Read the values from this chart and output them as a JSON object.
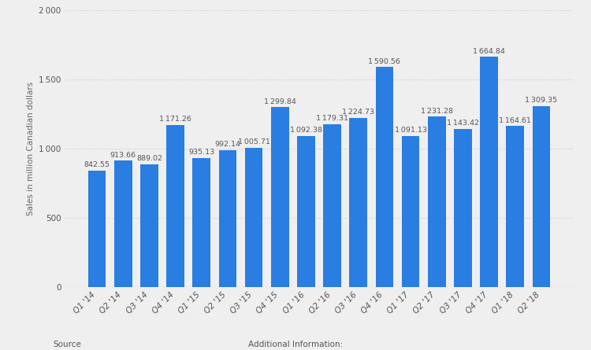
{
  "categories": [
    "Q1 '14",
    "Q2 '14",
    "Q3 '14",
    "Q4 '14",
    "Q1 '15",
    "Q2 '15",
    "Q3 '15",
    "Q4 '15",
    "Q1 '16",
    "Q2 '16",
    "Q3 '16",
    "Q4 '16",
    "Q1 '17",
    "Q2 '17",
    "Q3 '17",
    "Q4 '17",
    "Q1 '18",
    "Q2 '18"
  ],
  "values": [
    842.55,
    913.66,
    889.02,
    1171.26,
    935.13,
    992.14,
    1005.71,
    1299.84,
    1092.38,
    1179.31,
    1224.73,
    1590.56,
    1091.13,
    1231.28,
    1143.42,
    1664.84,
    1164.61,
    1309.35
  ],
  "bar_color": "#2a7de1",
  "background_color": "#efefef",
  "plot_bg_color": "#efefef",
  "ylabel": "Sales in million Canadian dollars",
  "ylim": [
    0,
    2000
  ],
  "yticks": [
    0,
    500,
    1000,
    1500,
    2000
  ],
  "value_fontsize": 6.8,
  "tick_fontsize": 7.5,
  "ylabel_fontsize": 7.5,
  "footer_left": "Source",
  "footer_right": "Additional Information:"
}
